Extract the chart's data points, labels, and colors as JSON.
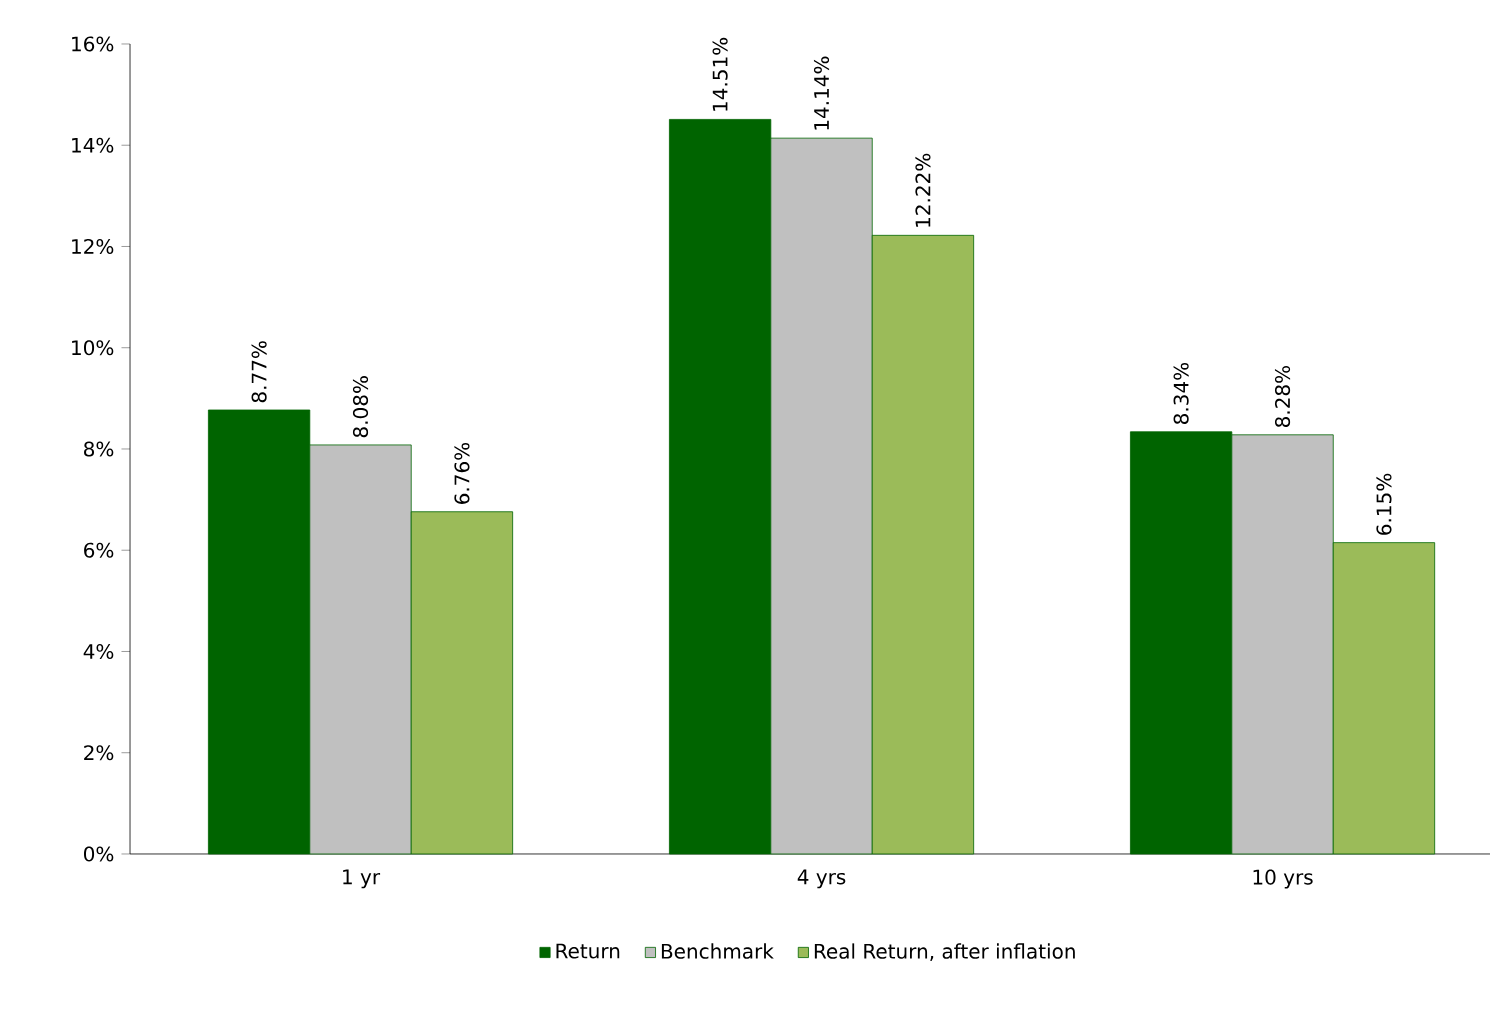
{
  "chart_data": {
    "type": "bar",
    "categories": [
      "1 yr",
      "4 yrs",
      "10 yrs"
    ],
    "series": [
      {
        "name": "Return",
        "color": "#006400",
        "values": [
          8.77,
          14.51,
          8.34
        ],
        "value_labels": [
          "8.77%",
          "14.51%",
          "8.34%"
        ]
      },
      {
        "name": "Benchmark",
        "color": "#c0c0c0",
        "values": [
          8.08,
          14.14,
          8.28
        ],
        "value_labels": [
          "8.08%",
          "14.14%",
          "8.28%"
        ]
      },
      {
        "name": "Real Return, after inflation",
        "color": "#9bbb59",
        "values": [
          6.76,
          12.22,
          6.15
        ],
        "value_labels": [
          "6.76%",
          "12.22%",
          "6.15%"
        ]
      }
    ],
    "ylim": [
      0,
      16
    ],
    "yticks": [
      {
        "value": 0,
        "label": "0%"
      },
      {
        "value": 2,
        "label": "2%"
      },
      {
        "value": 4,
        "label": "4%"
      },
      {
        "value": 6,
        "label": "6%"
      },
      {
        "value": 8,
        "label": "8%"
      },
      {
        "value": 10,
        "label": "10%"
      },
      {
        "value": 12,
        "label": "12%"
      },
      {
        "value": 14,
        "label": "14%"
      },
      {
        "value": 16,
        "label": "16%"
      }
    ],
    "legend": "bottom"
  }
}
